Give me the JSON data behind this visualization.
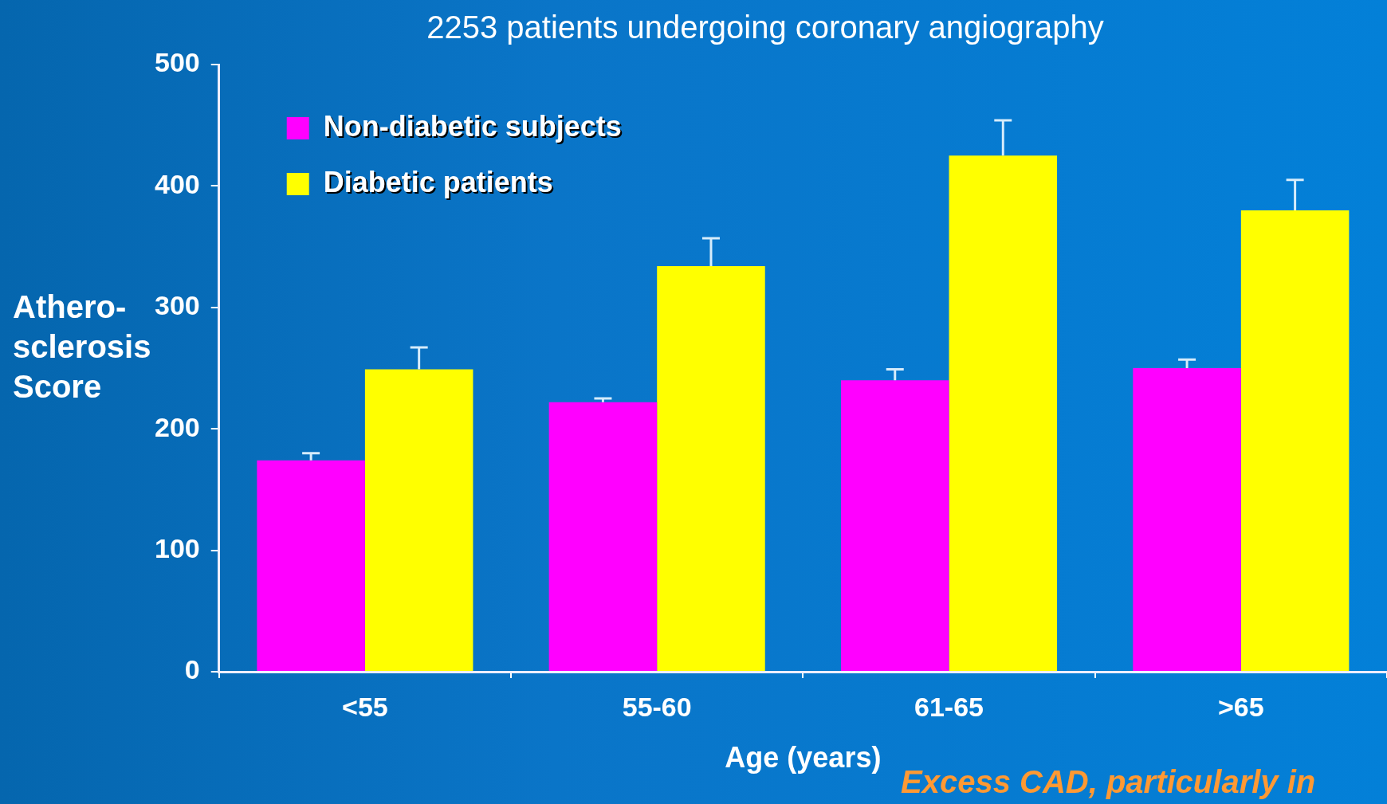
{
  "chart_data": {
    "type": "bar",
    "title": "2253 patients undergoing coronary angiography",
    "xlabel": "Age (years)",
    "ylabel": "Athero-\nsclerosis\nScore",
    "categories": [
      "<55",
      "55-60",
      "61-65",
      ">65"
    ],
    "series": [
      {
        "name": "Non-diabetic subjects",
        "color": "#ff00ff",
        "values": [
          174,
          222,
          240,
          250
        ],
        "errors": [
          [
            174,
            180
          ],
          [
            222,
            225
          ],
          [
            240,
            249
          ],
          [
            250,
            257
          ]
        ]
      },
      {
        "name": "Diabetic patients",
        "color": "#ffff00",
        "values": [
          249,
          334,
          425,
          380
        ],
        "errors": [
          [
            249,
            267
          ],
          [
            334,
            357
          ],
          [
            425,
            454
          ],
          [
            380,
            405
          ]
        ]
      }
    ],
    "ylim": [
      0,
      500
    ],
    "yticks": [
      0,
      100,
      200,
      300,
      400,
      500
    ],
    "grid": false,
    "legend": "top left",
    "annotations": [
      "Excess CAD, particularly in"
    ]
  }
}
